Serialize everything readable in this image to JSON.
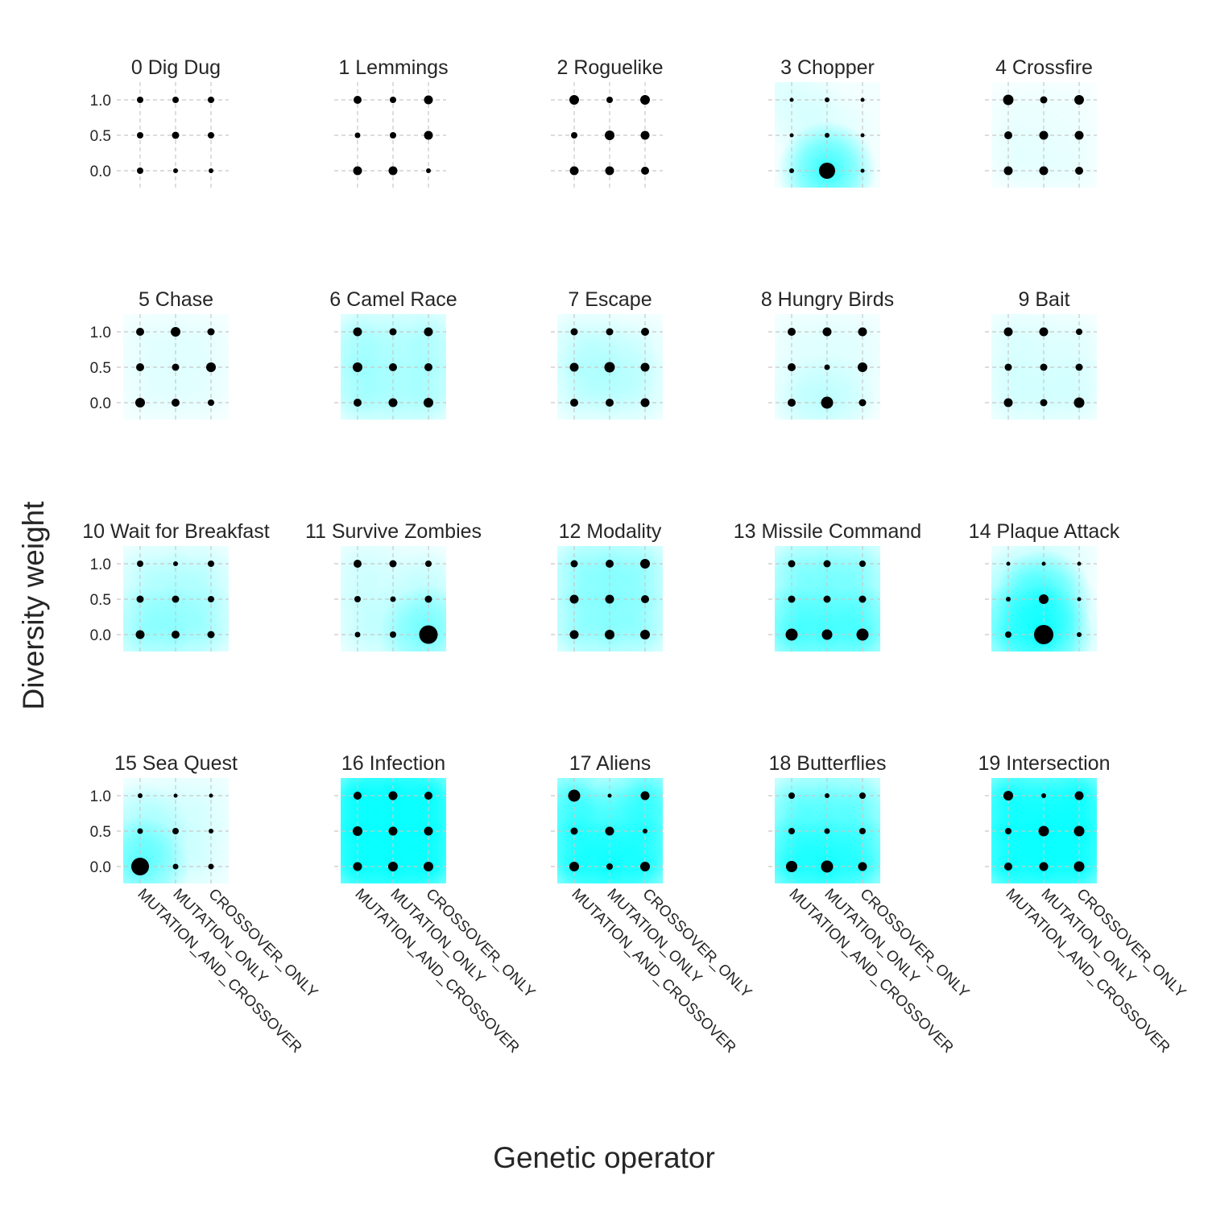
{
  "figure": {
    "xlabel": "Genetic operator",
    "ylabel": "Diversity weight"
  },
  "chart_data": {
    "type": "scatter",
    "x_categories": [
      "MUTATION_AND_CROSSOVER",
      "MUTATION_ONLY",
      "CROSSOVER_ONLY"
    ],
    "y_values": [
      0.0,
      0.5,
      1.0
    ],
    "y_tick_labels": [
      "0.0",
      "0.5",
      "1.0"
    ],
    "grid": true,
    "marker_color": "#000000",
    "heat_color": "#00ffff",
    "note_sizes": "sizes are relative marker magnitudes 0-1",
    "panels": [
      {
        "title": "0 Dig Dug",
        "sizes": [
          [
            0.4,
            0.3,
            0.3
          ],
          [
            0.4,
            0.45,
            0.4
          ],
          [
            0.4,
            0.4,
            0.4
          ]
        ],
        "intensity": [
          [
            0,
            0,
            0
          ],
          [
            0,
            0,
            0
          ],
          [
            0,
            0,
            0
          ]
        ]
      },
      {
        "title": "1 Lemmings",
        "sizes": [
          [
            0.55,
            0.55,
            0.3
          ],
          [
            0.35,
            0.4,
            0.55
          ],
          [
            0.5,
            0.4,
            0.55
          ]
        ],
        "intensity": [
          [
            0,
            0,
            0
          ],
          [
            0,
            0,
            0
          ],
          [
            0,
            0,
            0
          ]
        ]
      },
      {
        "title": "2 Roguelike",
        "sizes": [
          [
            0.55,
            0.55,
            0.5
          ],
          [
            0.4,
            0.6,
            0.55
          ],
          [
            0.6,
            0.4,
            0.6
          ]
        ],
        "intensity": [
          [
            0,
            0,
            0
          ],
          [
            0,
            0,
            0
          ],
          [
            0,
            0,
            0
          ]
        ]
      },
      {
        "title": "3 Chopper",
        "sizes": [
          [
            0.3,
            1.0,
            0.25
          ],
          [
            0.25,
            0.3,
            0.25
          ],
          [
            0.25,
            0.3,
            0.25
          ]
        ],
        "intensity": [
          [
            0,
            0.8,
            0
          ],
          [
            0,
            0.1,
            0
          ],
          [
            0.1,
            0,
            0
          ]
        ]
      },
      {
        "title": "4 Crossfire",
        "sizes": [
          [
            0.55,
            0.55,
            0.5
          ],
          [
            0.5,
            0.55,
            0.55
          ],
          [
            0.65,
            0.45,
            0.6
          ]
        ],
        "intensity": [
          [
            0.05,
            0.05,
            0.05
          ],
          [
            0.05,
            0.03,
            0.03
          ],
          [
            0.03,
            0.03,
            0.03
          ]
        ]
      },
      {
        "title": "5 Chase",
        "sizes": [
          [
            0.6,
            0.5,
            0.4
          ],
          [
            0.5,
            0.45,
            0.6
          ],
          [
            0.5,
            0.6,
            0.45
          ]
        ],
        "intensity": [
          [
            0.05,
            0.05,
            0.05
          ],
          [
            0.05,
            0.05,
            0.05
          ],
          [
            0.05,
            0.05,
            0.05
          ]
        ]
      },
      {
        "title": "6 Camel Race",
        "sizes": [
          [
            0.5,
            0.55,
            0.6
          ],
          [
            0.6,
            0.5,
            0.5
          ],
          [
            0.55,
            0.45,
            0.55
          ]
        ],
        "intensity": [
          [
            0.2,
            0.15,
            0.2
          ],
          [
            0.25,
            0.1,
            0.2
          ],
          [
            0.2,
            0.1,
            0.2
          ]
        ]
      },
      {
        "title": "7 Escape",
        "sizes": [
          [
            0.5,
            0.5,
            0.55
          ],
          [
            0.55,
            0.65,
            0.55
          ],
          [
            0.45,
            0.45,
            0.5
          ]
        ],
        "intensity": [
          [
            0.1,
            0.1,
            0.1
          ],
          [
            0.15,
            0.2,
            0.1
          ],
          [
            0.1,
            0.05,
            0.05
          ]
        ]
      },
      {
        "title": "8 Hungry Birds",
        "sizes": [
          [
            0.5,
            0.75,
            0.45
          ],
          [
            0.5,
            0.35,
            0.6
          ],
          [
            0.5,
            0.55,
            0.55
          ]
        ],
        "intensity": [
          [
            0.1,
            0.2,
            0.05
          ],
          [
            0.05,
            0.05,
            0.05
          ],
          [
            0.05,
            0.05,
            0.05
          ]
        ]
      },
      {
        "title": "9 Bait",
        "sizes": [
          [
            0.55,
            0.45,
            0.65
          ],
          [
            0.45,
            0.45,
            0.45
          ],
          [
            0.55,
            0.55,
            0.4
          ]
        ],
        "intensity": [
          [
            0.1,
            0.08,
            0.1
          ],
          [
            0.08,
            0.05,
            0.08
          ],
          [
            0.08,
            0.05,
            0.05
          ]
        ]
      },
      {
        "title": "10 Wait for Breakfast",
        "sizes": [
          [
            0.55,
            0.5,
            0.45
          ],
          [
            0.45,
            0.45,
            0.4
          ],
          [
            0.4,
            0.3,
            0.4
          ]
        ],
        "intensity": [
          [
            0.3,
            0.25,
            0.2
          ],
          [
            0.15,
            0.2,
            0.15
          ],
          [
            0.1,
            0.1,
            0.1
          ]
        ]
      },
      {
        "title": "11 Survive Zombies",
        "sizes": [
          [
            0.35,
            0.4,
            1.15
          ],
          [
            0.4,
            0.35,
            0.45
          ],
          [
            0.5,
            0.45,
            0.4
          ]
        ],
        "intensity": [
          [
            0.1,
            0.15,
            0.5
          ],
          [
            0.1,
            0.05,
            0.2
          ],
          [
            0.1,
            0.05,
            0.05
          ]
        ]
      },
      {
        "title": "12 Modality",
        "sizes": [
          [
            0.55,
            0.6,
            0.6
          ],
          [
            0.55,
            0.55,
            0.5
          ],
          [
            0.45,
            0.5,
            0.6
          ]
        ],
        "intensity": [
          [
            0.25,
            0.25,
            0.25
          ],
          [
            0.2,
            0.25,
            0.2
          ],
          [
            0.25,
            0.25,
            0.25
          ]
        ]
      },
      {
        "title": "13 Missile Command",
        "sizes": [
          [
            0.75,
            0.65,
            0.75
          ],
          [
            0.45,
            0.45,
            0.45
          ],
          [
            0.45,
            0.45,
            0.4
          ]
        ],
        "intensity": [
          [
            0.6,
            0.5,
            0.6
          ],
          [
            0.3,
            0.3,
            0.3
          ],
          [
            0.25,
            0.25,
            0.25
          ]
        ]
      },
      {
        "title": "14 Plaque Attack",
        "sizes": [
          [
            0.4,
            1.2,
            0.3
          ],
          [
            0.3,
            0.6,
            0.25
          ],
          [
            0.25,
            0.25,
            0.25
          ]
        ],
        "intensity": [
          [
            0.6,
            0.95,
            0.1
          ],
          [
            0.3,
            0.8,
            0
          ],
          [
            0.05,
            0.15,
            0
          ]
        ]
      },
      {
        "title": "15 Sea Quest",
        "sizes": [
          [
            1.1,
            0.35,
            0.35
          ],
          [
            0.35,
            0.4,
            0.3
          ],
          [
            0.3,
            0.25,
            0.25
          ]
        ],
        "intensity": [
          [
            0.6,
            0.1,
            0.05
          ],
          [
            0.3,
            0.1,
            0.05
          ],
          [
            0.05,
            0.05,
            0.05
          ]
        ]
      },
      {
        "title": "16 Infection",
        "sizes": [
          [
            0.55,
            0.6,
            0.6
          ],
          [
            0.6,
            0.55,
            0.55
          ],
          [
            0.5,
            0.55,
            0.5
          ]
        ],
        "intensity": [
          [
            0.95,
            0.95,
            0.95
          ],
          [
            0.95,
            0.95,
            0.95
          ],
          [
            0.95,
            0.95,
            0.95
          ]
        ]
      },
      {
        "title": "17 Aliens",
        "sizes": [
          [
            0.6,
            0.4,
            0.6
          ],
          [
            0.45,
            0.55,
            0.3
          ],
          [
            0.75,
            0.25,
            0.55
          ]
        ],
        "intensity": [
          [
            0.8,
            0.9,
            0.8
          ],
          [
            0.7,
            0.5,
            0.7
          ],
          [
            0.6,
            0.0,
            0.7
          ]
        ]
      },
      {
        "title": "18 Butterflies",
        "sizes": [
          [
            0.7,
            0.75,
            0.55
          ],
          [
            0.4,
            0.35,
            0.4
          ],
          [
            0.4,
            0.3,
            0.4
          ]
        ],
        "intensity": [
          [
            0.8,
            0.85,
            0.7
          ],
          [
            0.5,
            0.45,
            0.45
          ],
          [
            0.3,
            0.3,
            0.3
          ]
        ]
      },
      {
        "title": "19 Intersection",
        "sizes": [
          [
            0.5,
            0.55,
            0.65
          ],
          [
            0.4,
            0.65,
            0.65
          ],
          [
            0.6,
            0.3,
            0.55
          ]
        ],
        "intensity": [
          [
            0.9,
            0.9,
            0.9
          ],
          [
            0.85,
            0.95,
            0.95
          ],
          [
            0.85,
            0.6,
            0.9
          ]
        ]
      }
    ]
  }
}
